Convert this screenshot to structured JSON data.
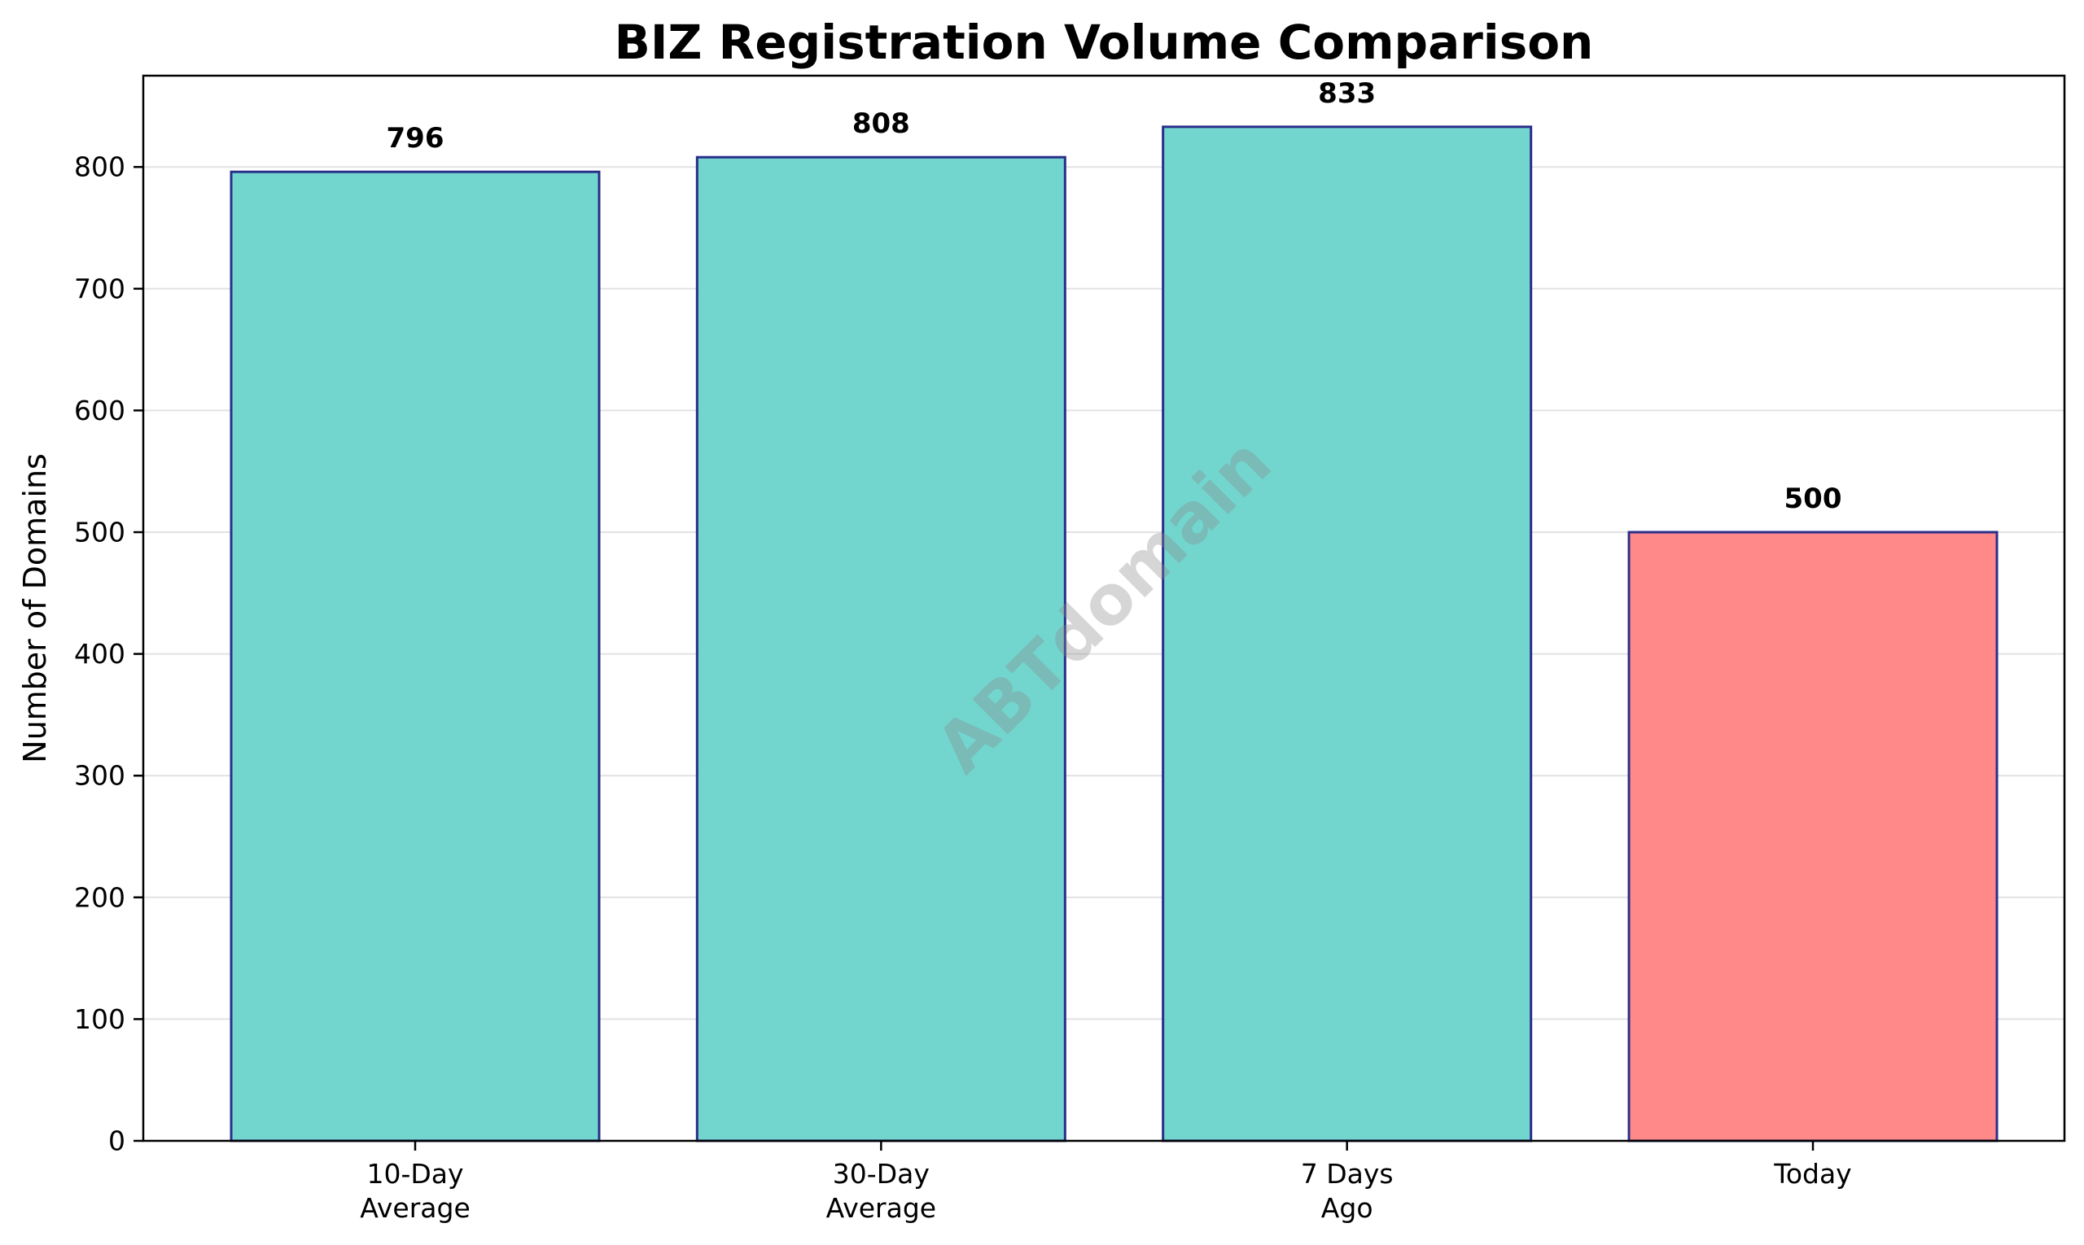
{
  "chart_data": {
    "type": "bar",
    "title": "BIZ Registration Volume Comparison",
    "xlabel": "",
    "ylabel": "Number of Domains",
    "categories": [
      [
        "10-Day",
        "Average"
      ],
      [
        "30-Day",
        "Average"
      ],
      [
        "7 Days",
        "Ago"
      ],
      [
        "Today"
      ]
    ],
    "values": [
      796,
      808,
      833,
      500
    ],
    "data_labels": [
      "796",
      "808",
      "833",
      "500"
    ],
    "bar_colors": [
      "#72d6cf",
      "#72d6cf",
      "#72d6cf",
      "#ff8888"
    ],
    "bar_edge_color": "#2a2f8a",
    "ylim": [
      0,
      875
    ],
    "yticks": [
      0,
      100,
      200,
      300,
      400,
      500,
      600,
      700,
      800
    ],
    "ytick_labels": [
      "0",
      "100",
      "200",
      "300",
      "400",
      "500",
      "600",
      "700",
      "800"
    ],
    "grid": "horizontal",
    "grid_color": "#e2e2e2",
    "legend": "none",
    "watermark": "ABTdomain"
  }
}
